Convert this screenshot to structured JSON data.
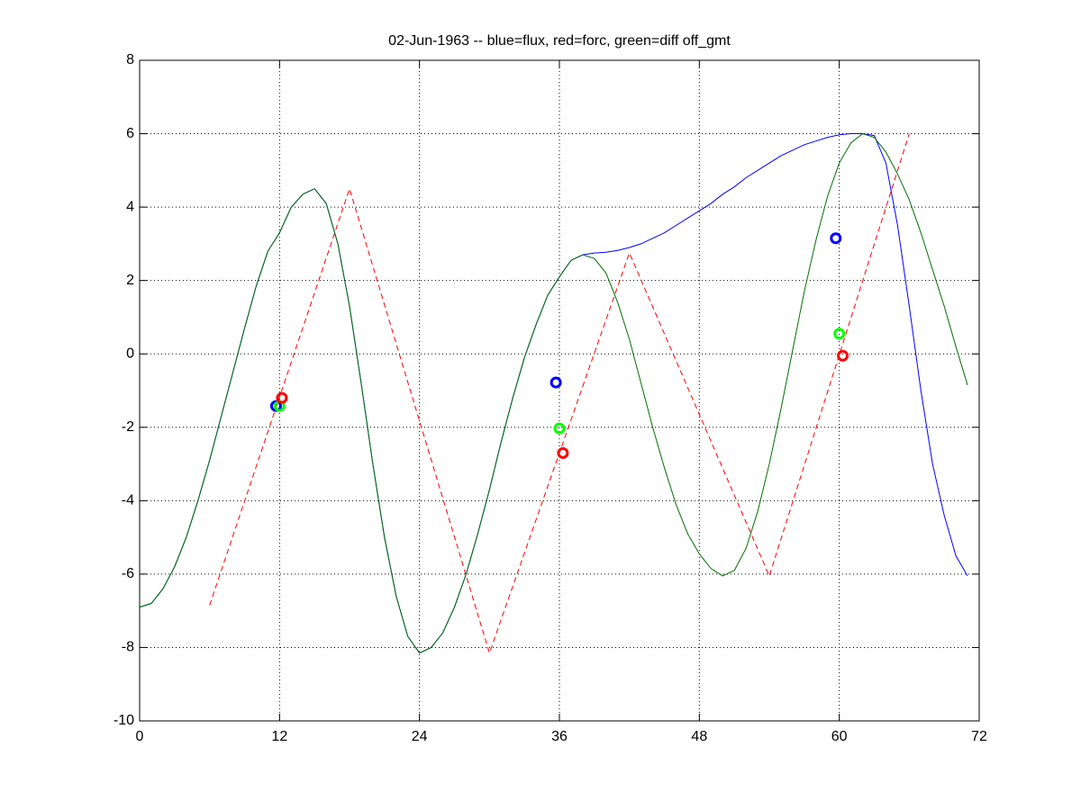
{
  "chart_data": {
    "type": "line",
    "title": "02-Jun-1963 -- blue=flux, red=forc, green=diff off_gmt",
    "x": [
      0,
      1,
      2,
      3,
      4,
      5,
      6,
      7,
      8,
      9,
      10,
      11,
      12,
      13,
      14,
      15,
      16,
      17,
      18,
      19,
      20,
      21,
      22,
      23,
      24,
      25,
      26,
      27,
      28,
      29,
      30,
      31,
      32,
      33,
      34,
      35,
      36,
      37,
      38,
      39,
      40,
      41,
      42,
      43,
      44,
      45,
      46,
      47,
      48,
      49,
      50,
      51,
      52,
      53,
      54,
      55,
      56,
      57,
      58,
      59,
      60,
      61,
      62,
      63,
      64,
      65,
      66,
      67,
      68,
      69,
      70,
      71
    ],
    "series": [
      {
        "color": "#0000ff",
        "style": "line",
        "values": [
          -6.9,
          -6.8,
          -6.4,
          -5.8,
          -5.0,
          -4.0,
          -2.9,
          -1.7,
          -0.5,
          0.7,
          1.85,
          2.8,
          3.3,
          4.0,
          4.35,
          4.5,
          4.1,
          3.0,
          1.3,
          -0.8,
          -3.0,
          -5.0,
          -6.6,
          -7.7,
          -8.15,
          -8.0,
          -7.6,
          -6.9,
          -6.0,
          -4.9,
          -3.7,
          -2.4,
          -1.2,
          -0.1,
          0.8,
          1.6,
          2.1,
          2.55,
          2.7,
          2.75,
          2.77,
          2.82,
          2.9,
          3.0,
          3.15,
          3.3,
          3.5,
          3.7,
          3.9,
          4.1,
          4.35,
          4.55,
          4.8,
          5.0,
          5.2,
          5.4,
          5.55,
          5.7,
          5.8,
          5.9,
          5.97,
          6.0,
          6.0,
          5.95,
          5.2,
          3.5,
          1.3,
          -1.0,
          -3.0,
          -4.4,
          -5.5,
          -6.05
        ]
      },
      {
        "color": "#007000",
        "style": "line",
        "values": [
          -6.9,
          -6.8,
          -6.4,
          -5.8,
          -5.0,
          -4.0,
          -2.9,
          -1.7,
          -0.5,
          0.7,
          1.85,
          2.8,
          3.3,
          4.0,
          4.35,
          4.5,
          4.1,
          3.0,
          1.3,
          -0.8,
          -3.0,
          -5.0,
          -6.6,
          -7.7,
          -8.15,
          -8.0,
          -7.6,
          -6.9,
          -6.0,
          -4.9,
          -3.7,
          -2.4,
          -1.2,
          -0.1,
          0.8,
          1.6,
          2.1,
          2.55,
          2.7,
          2.6,
          2.2,
          1.4,
          0.4,
          -0.8,
          -2.0,
          -3.1,
          -4.1,
          -4.9,
          -5.45,
          -5.85,
          -6.05,
          -5.9,
          -5.3,
          -4.3,
          -3.0,
          -1.5,
          0.1,
          1.7,
          3.1,
          4.3,
          5.2,
          5.75,
          6.0,
          5.9,
          5.5,
          4.9,
          4.2,
          3.3,
          2.3,
          1.3,
          0.2,
          -0.85
        ]
      },
      {
        "color": "#ff0000",
        "style": "dashed",
        "x": [
          6,
          18,
          30,
          42,
          54,
          66
        ],
        "values": [
          -6.85,
          4.5,
          -8.15,
          2.75,
          -6.05,
          6.0
        ]
      },
      {
        "color": "#0000ff",
        "style": "circle",
        "x": [
          11.7,
          35.7,
          59.7
        ],
        "values": [
          -1.42,
          -0.78,
          3.15
        ]
      },
      {
        "color": "#00ff00",
        "style": "circle",
        "x": [
          12,
          36,
          60
        ],
        "values": [
          -1.42,
          -2.03,
          0.55
        ]
      },
      {
        "color": "#ff0000",
        "style": "circle",
        "x": [
          12.2,
          36.3,
          60.3
        ],
        "values": [
          -1.2,
          -2.7,
          -0.05
        ]
      }
    ],
    "xlim": [
      0,
      72
    ],
    "xticks": [
      0,
      12,
      24,
      36,
      48,
      60,
      72
    ],
    "ylim": [
      -10,
      8
    ],
    "yticks": [
      -10,
      -8,
      -6,
      -4,
      -2,
      0,
      2,
      4,
      6,
      8
    ],
    "grid": true
  }
}
